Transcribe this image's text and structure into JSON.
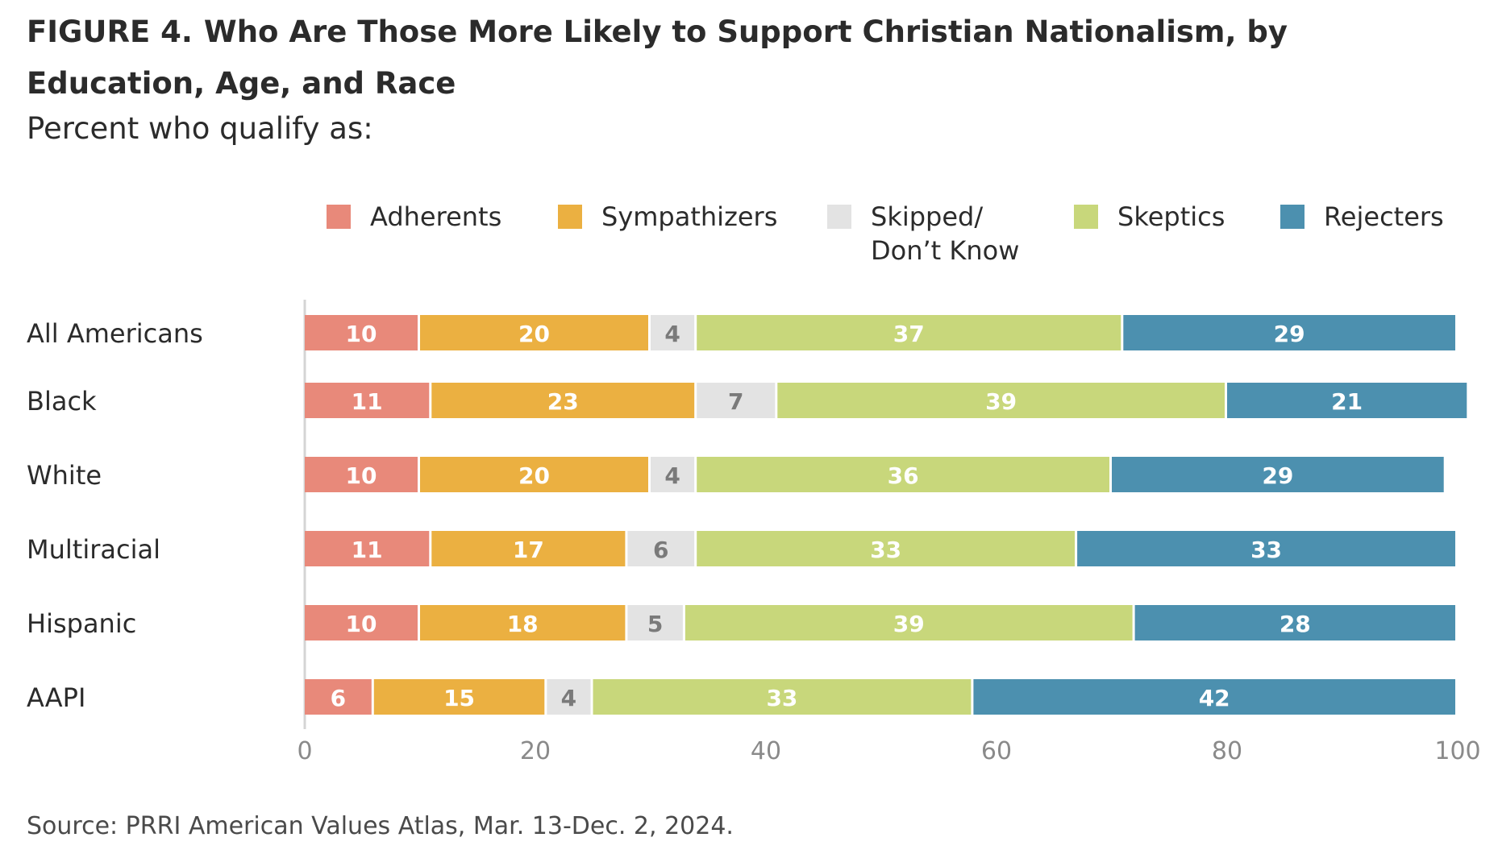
{
  "figure_label": "FIGURE 4.",
  "title": "Who Are Those More Likely to Support Christian Nationalism, by Education, Age, and Race",
  "subtitle": "Percent who qualify as:",
  "source": "Source: PRRI American Values Atlas, Mar. 13-Dec. 2, 2024.",
  "legend": [
    {
      "label": "Adherents",
      "color": "#E8897A"
    },
    {
      "label": "Sympathizers",
      "color": "#EBB041"
    },
    {
      "label": "Skipped/\nDon’t Know",
      "color": "#E3E3E3"
    },
    {
      "label": "Skeptics",
      "color": "#C8D77B"
    },
    {
      "label": "Rejecters",
      "color": "#4C90AF"
    }
  ],
  "chart_data": {
    "type": "bar",
    "orientation": "horizontal",
    "stacked": true,
    "categories": [
      "All Americans",
      "Black",
      "White",
      "Multiracial",
      "Hispanic",
      "AAPI"
    ],
    "series": [
      {
        "name": "Adherents",
        "color": "#E8897A",
        "label_color": "#ffffff",
        "values": [
          10,
          11,
          10,
          11,
          10,
          6
        ]
      },
      {
        "name": "Sympathizers",
        "color": "#EBB041",
        "label_color": "#ffffff",
        "values": [
          20,
          23,
          20,
          17,
          18,
          15
        ]
      },
      {
        "name": "Skipped/Don’t Know",
        "color": "#E3E3E3",
        "label_color": "#7a7a7a",
        "values": [
          4,
          7,
          4,
          6,
          5,
          4
        ]
      },
      {
        "name": "Skeptics",
        "color": "#C8D77B",
        "label_color": "#ffffff",
        "values": [
          37,
          39,
          36,
          33,
          39,
          33
        ]
      },
      {
        "name": "Rejecters",
        "color": "#4C90AF",
        "label_color": "#ffffff",
        "values": [
          29,
          21,
          29,
          33,
          28,
          42
        ]
      }
    ],
    "x_ticks": [
      0,
      20,
      40,
      60,
      80,
      100
    ],
    "xlim": [
      0,
      100
    ],
    "grid": false,
    "legend_position": "top"
  }
}
